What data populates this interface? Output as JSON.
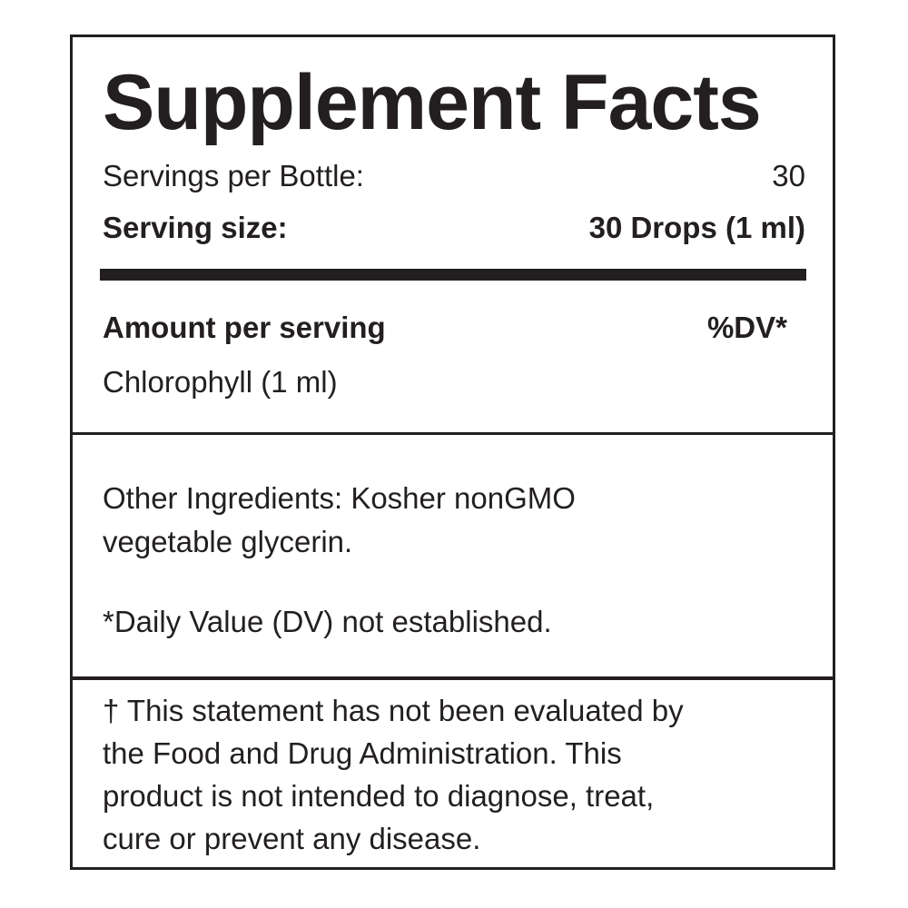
{
  "title": "Supplement Facts",
  "servings_per_bottle": {
    "label": "Servings per Bottle:",
    "value": "30"
  },
  "serving_size": {
    "label": "Serving size:",
    "value": "30 Drops (1 ml)"
  },
  "amount_header": {
    "label": "Amount per serving",
    "dv": "%DV*"
  },
  "ingredients": [
    {
      "name": "Chlorophyll (1 ml)"
    }
  ],
  "other_ingredients": [
    "Other Ingredients: Kosher nonGMO",
    "vegetable glycerin."
  ],
  "dv_note": "*Daily Value (DV) not established.",
  "disclaimer": [
    "† This statement has not been evaluated by",
    "the Food and Drug Administration. This",
    "product is not intended to diagnose, treat,",
    "cure or prevent any disease."
  ]
}
